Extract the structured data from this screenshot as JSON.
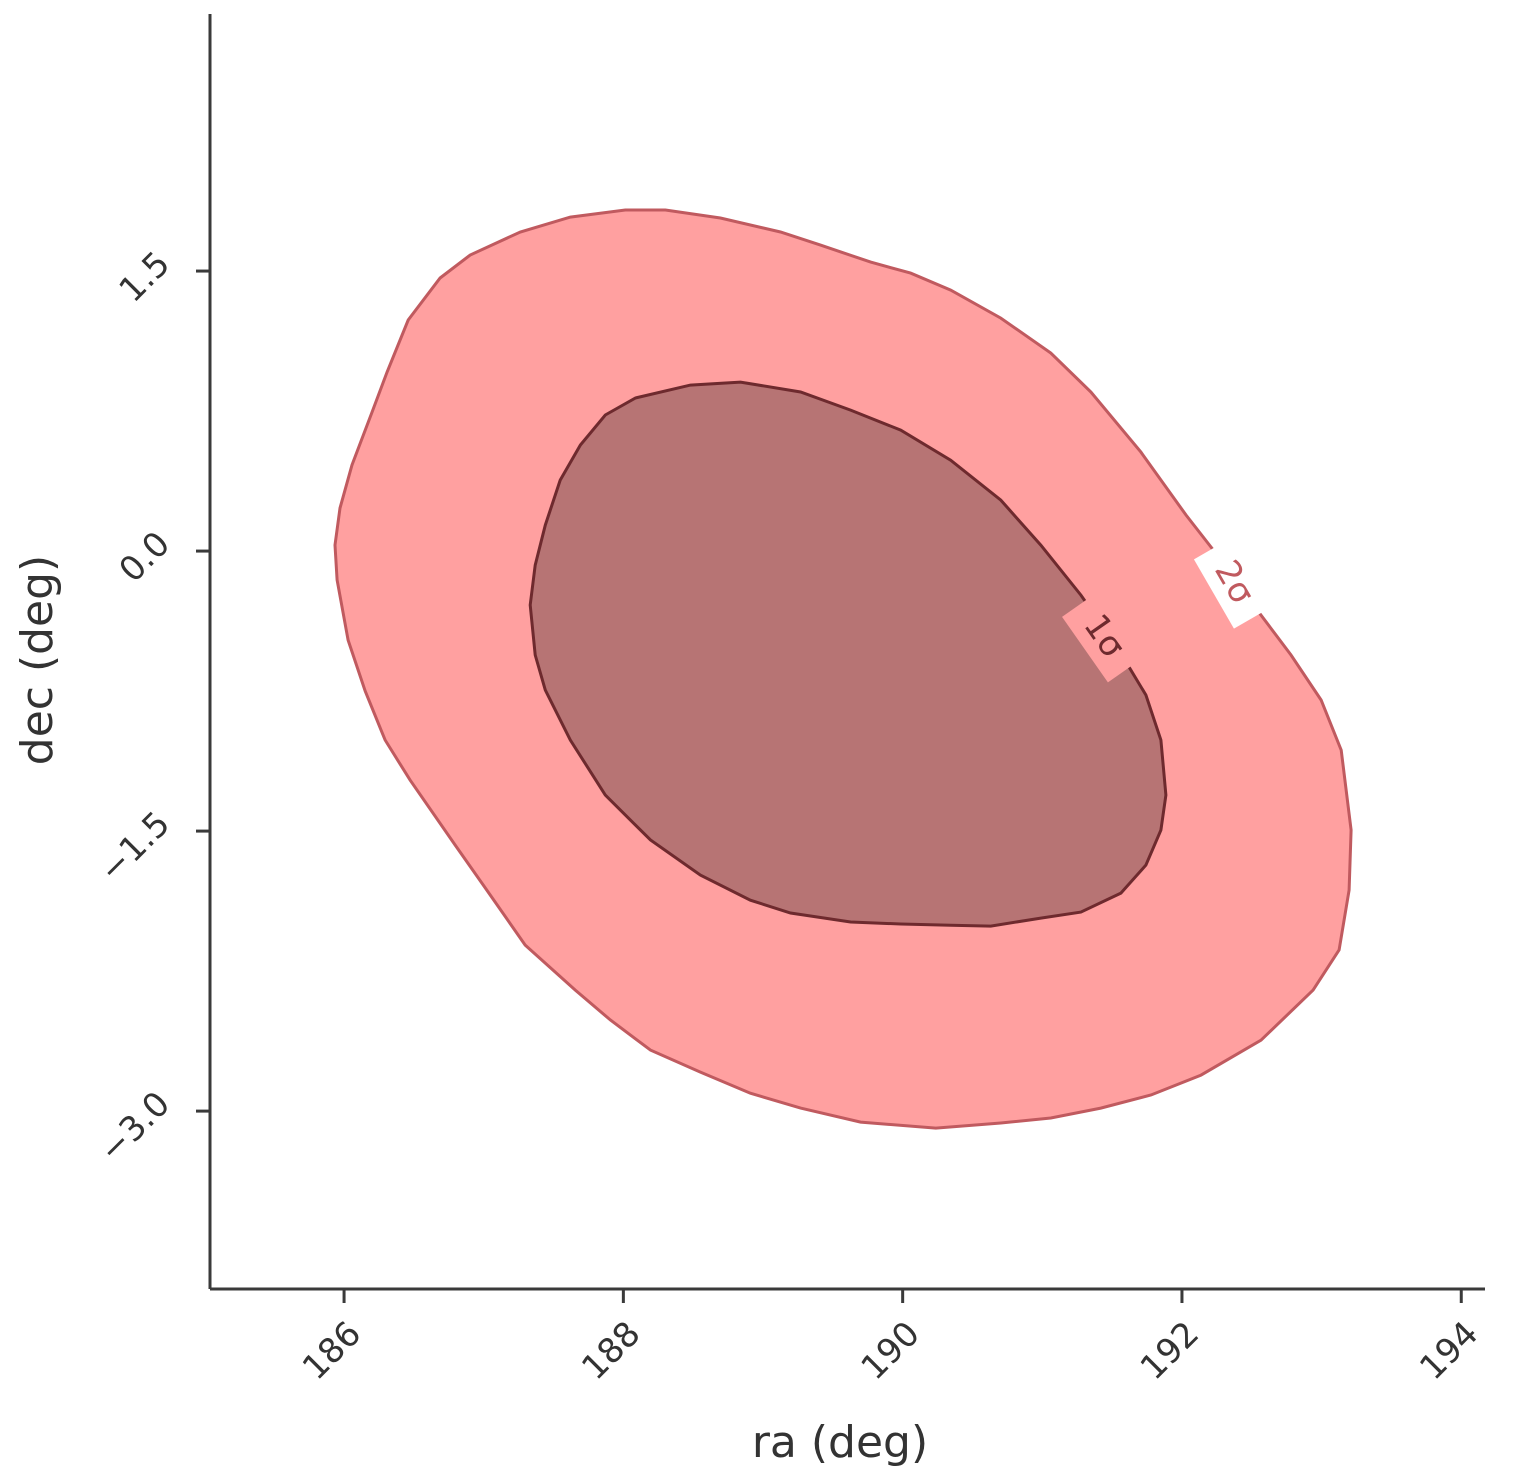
{
  "chart_data": {
    "type": "contour",
    "xlabel": "ra (deg)",
    "ylabel": "dec (deg)",
    "xlim": [
      185.04,
      194.17
    ],
    "ylim": [
      -3.953,
      2.877
    ],
    "xticks": [
      186,
      188,
      190,
      192,
      194
    ],
    "yticks": [
      {
        "value": -3.0,
        "label": "−3.0"
      },
      {
        "value": -1.5,
        "label": "−1.5"
      },
      {
        "value": 0,
        "label": "0.0"
      },
      {
        "value": 1.5,
        "label": "1.5"
      }
    ],
    "contours": [
      {
        "name": "2σ",
        "color": "#ffa0a0",
        "edge_color": "#c05a5f",
        "x": [
          185.935,
          185.971,
          186.057,
          186.201,
          186.308,
          186.459,
          186.688,
          186.903,
          187.262,
          187.62,
          188.014,
          188.301,
          188.695,
          189.125,
          189.412,
          189.771,
          190.057,
          190.344,
          190.703,
          191.061,
          191.348,
          191.706,
          192.029,
          192.28,
          192.566,
          192.781,
          192.996,
          193.14,
          193.211,
          193.197,
          193.125,
          192.939,
          192.566,
          192.136,
          191.778,
          191.419,
          191.061,
          190.703,
          190.237,
          189.699,
          189.269,
          188.91,
          188.552,
          188.194,
          187.907,
          187.656,
          187.297,
          187.047,
          186.796,
          186.473,
          186.294,
          186.151,
          186.029,
          185.95
        ],
        "y": [
          0.032,
          0.23,
          0.461,
          0.745,
          0.959,
          1.238,
          1.463,
          1.586,
          1.709,
          1.789,
          1.827,
          1.827,
          1.784,
          1.709,
          1.639,
          1.548,
          1.489,
          1.398,
          1.248,
          1.061,
          0.852,
          0.53,
          0.193,
          -0.048,
          -0.343,
          -0.557,
          -0.798,
          -1.066,
          -1.495,
          -1.816,
          -2.137,
          -2.352,
          -2.62,
          -2.807,
          -2.914,
          -2.984,
          -3.037,
          -3.064,
          -3.091,
          -3.059,
          -2.984,
          -2.904,
          -2.791,
          -2.673,
          -2.512,
          -2.352,
          -2.111,
          -1.843,
          -1.575,
          -1.227,
          -1.012,
          -0.75,
          -0.477,
          -0.155
        ]
      },
      {
        "name": "1σ",
        "color": "#b77474",
        "edge_color": "#6e2a2e",
        "x": [
          187.333,
          187.369,
          187.441,
          187.548,
          187.692,
          187.871,
          188.086,
          188.48,
          188.839,
          189.269,
          189.627,
          189.986,
          190.344,
          190.703,
          190.989,
          191.276,
          191.527,
          191.742,
          191.849,
          191.885,
          191.849,
          191.742,
          191.563,
          191.276,
          190.989,
          190.631,
          190.344,
          189.986,
          189.627,
          189.197,
          188.91,
          188.552,
          188.194,
          187.871,
          187.62,
          187.441,
          187.369
        ],
        "y": [
          -0.289,
          -0.075,
          0.139,
          0.38,
          0.568,
          0.729,
          0.82,
          0.889,
          0.905,
          0.852,
          0.755,
          0.648,
          0.487,
          0.273,
          0.032,
          -0.236,
          -0.504,
          -0.771,
          -1.012,
          -1.307,
          -1.495,
          -1.682,
          -1.832,
          -1.934,
          -1.966,
          -2.009,
          -2.004,
          -1.998,
          -1.987,
          -1.939,
          -1.87,
          -1.736,
          -1.548,
          -1.307,
          -1.012,
          -0.745,
          -0.557
        ]
      }
    ]
  }
}
